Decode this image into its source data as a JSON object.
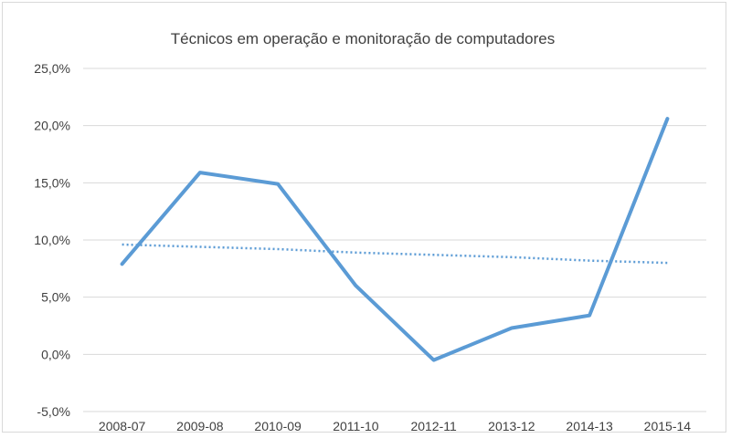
{
  "chart_data": {
    "type": "line",
    "title": "Técnicos em operação e monitoração de computadores",
    "xlabel": "",
    "ylabel": "",
    "categories": [
      "2008-07",
      "2009-08",
      "2010-09",
      "2011-10",
      "2012-11",
      "2013-12",
      "2014-13",
      "2015-14"
    ],
    "series": [
      {
        "values": [
          0.079,
          0.159,
          0.149,
          0.06,
          -0.005,
          0.023,
          0.034,
          0.206
        ],
        "color": "#5b9bd5",
        "style": "solid"
      },
      {
        "type": "trendline",
        "values": [
          0.096,
          0.094,
          0.092,
          0.089,
          0.087,
          0.085,
          0.082,
          0.08
        ],
        "color": "#5b9bd5",
        "style": "dotted"
      }
    ],
    "ylim": [
      -0.05,
      0.25
    ],
    "yticks": [
      -0.05,
      0,
      0.05,
      0.1,
      0.15,
      0.2,
      0.25
    ],
    "ytick_labels": [
      "-5,0%",
      "0,0%",
      "5,0%",
      "10,0%",
      "15,0%",
      "20,0%",
      "25,0%"
    ],
    "grid": true,
    "legend": "none"
  }
}
